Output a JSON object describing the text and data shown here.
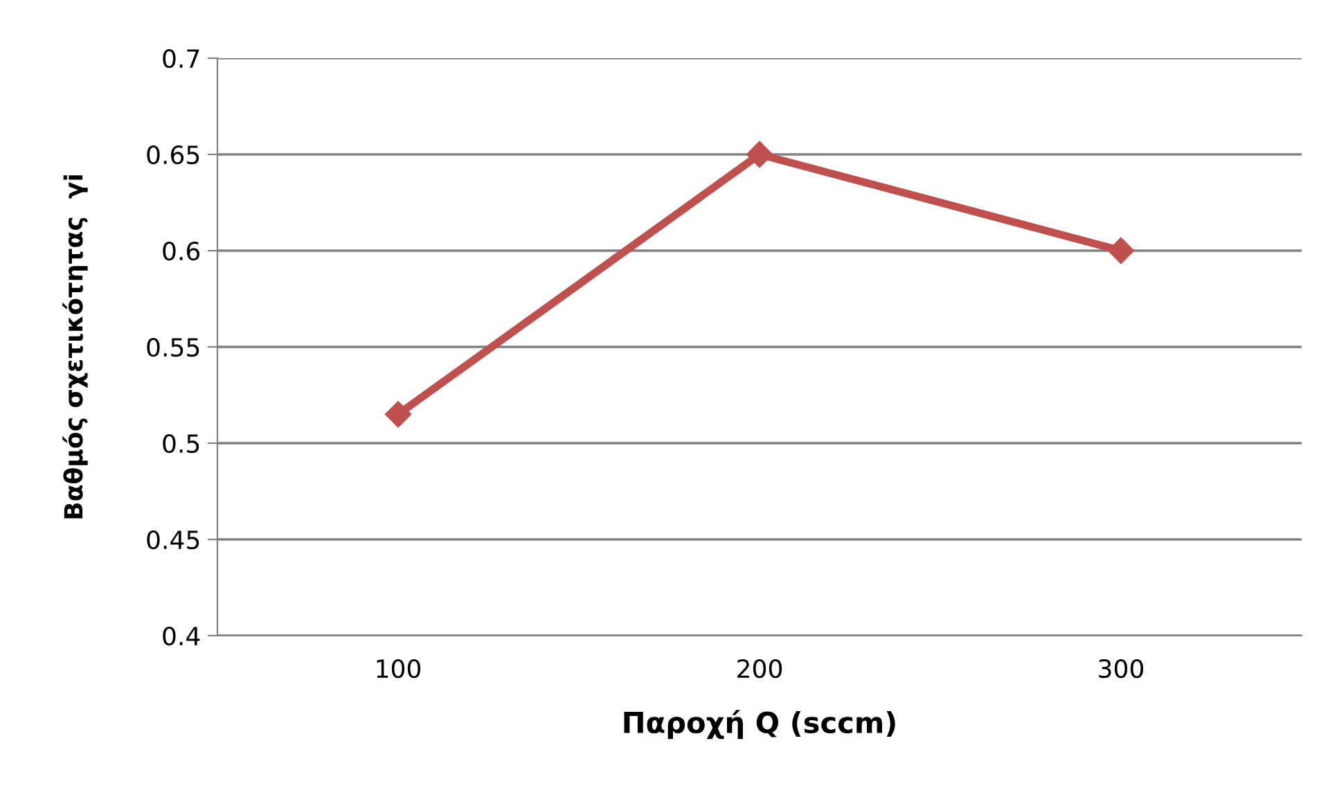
{
  "chart_data": {
    "type": "line",
    "xlabel": "Παροχή Q (sccm)",
    "ylabel": "Βαθμός σχετικότητας  γi",
    "categories": [
      "100",
      "200",
      "300"
    ],
    "series": [
      {
        "color": "#c0504d",
        "values": [
          0.515,
          0.65,
          0.6
        ]
      }
    ],
    "ylim": [
      0.4,
      0.7
    ],
    "yticks": [
      0.4,
      0.45,
      0.5,
      0.55,
      0.6,
      0.65,
      0.7
    ],
    "grid": "y",
    "marker": "diamond",
    "line_style": "solid",
    "legend": false
  }
}
